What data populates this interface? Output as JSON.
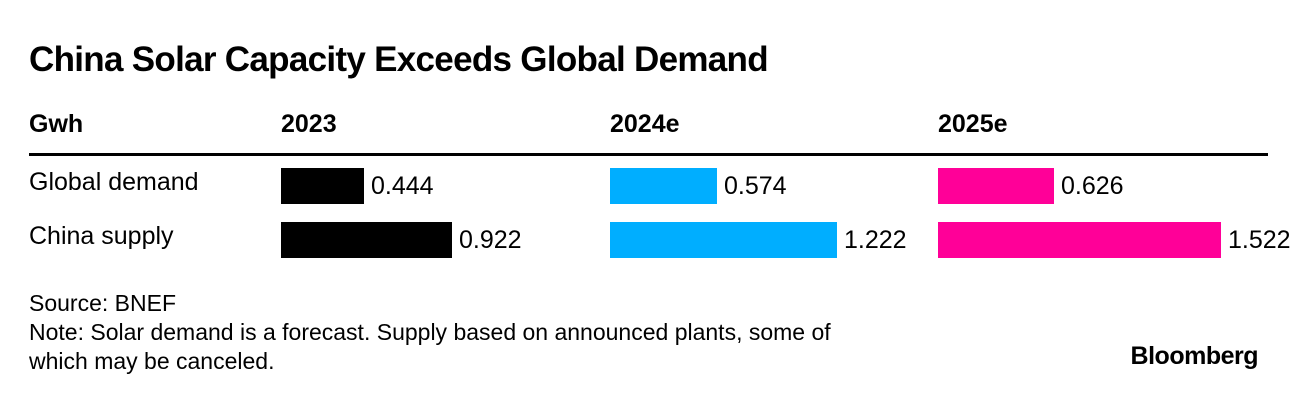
{
  "chart_data": {
    "type": "table",
    "title": "China Solar Capacity Exceeds Global Demand",
    "unit_label": "Gwh",
    "columns": [
      "2023",
      "2024e",
      "2025e"
    ],
    "rows": [
      {
        "label": "Global demand",
        "values": [
          "0.444",
          "0.574",
          "0.626"
        ]
      },
      {
        "label": "China supply",
        "values": [
          "0.922",
          "1.222",
          "1.522"
        ]
      }
    ],
    "series_colors": [
      "#000000",
      "#00aeff",
      "#ff0098"
    ],
    "value_max": 1.6
  },
  "footer": {
    "source": "Source: BNEF",
    "note_line1": "Note: Solar demand is a forecast. Supply based on announced plants, some of",
    "note_line2": "which may be canceled."
  },
  "brand": "Bloomberg"
}
